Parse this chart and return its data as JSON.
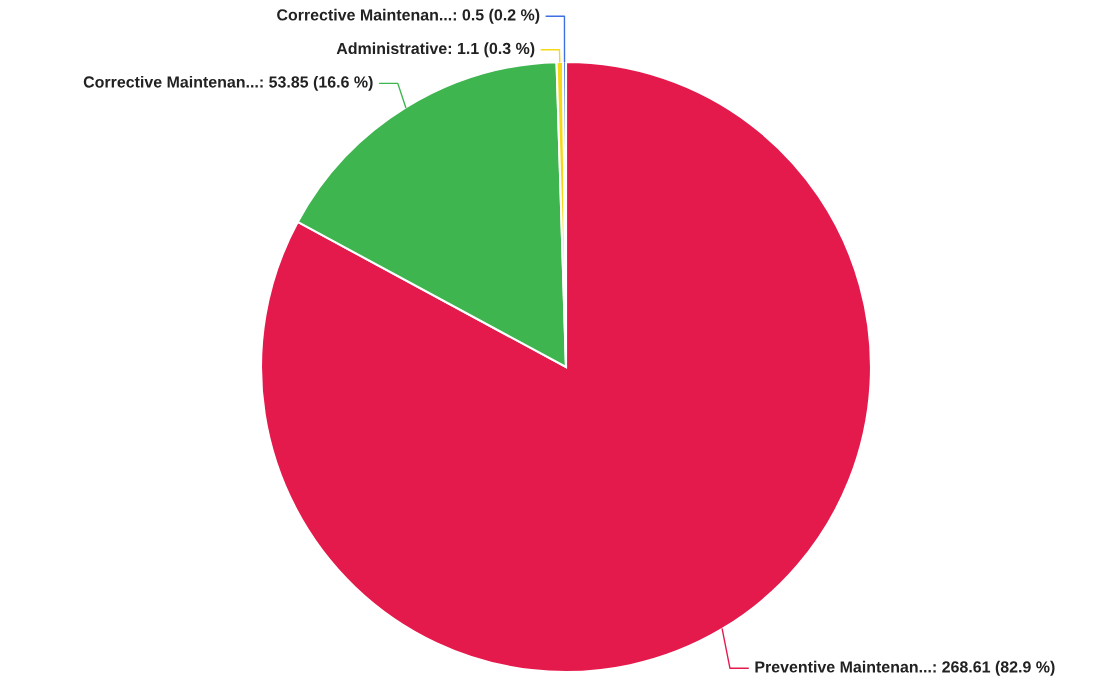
{
  "chart_data": {
    "type": "pie",
    "categories": [
      "Preventive Maintenan...",
      "Corrective Maintenan...",
      "Administrative",
      "Corrective Maintenan..."
    ],
    "values": [
      268.61,
      53.85,
      1.1,
      0.5
    ],
    "colors": [
      "#e51a4c",
      "#3eb54f",
      "#f5d915",
      "#3f6fe0"
    ],
    "value_labels": [
      "268.61 (82.9 %)",
      "53.85 (16.6 %)",
      "1.1 (0.3 %)",
      "0.5 (0.2 %)"
    ]
  }
}
